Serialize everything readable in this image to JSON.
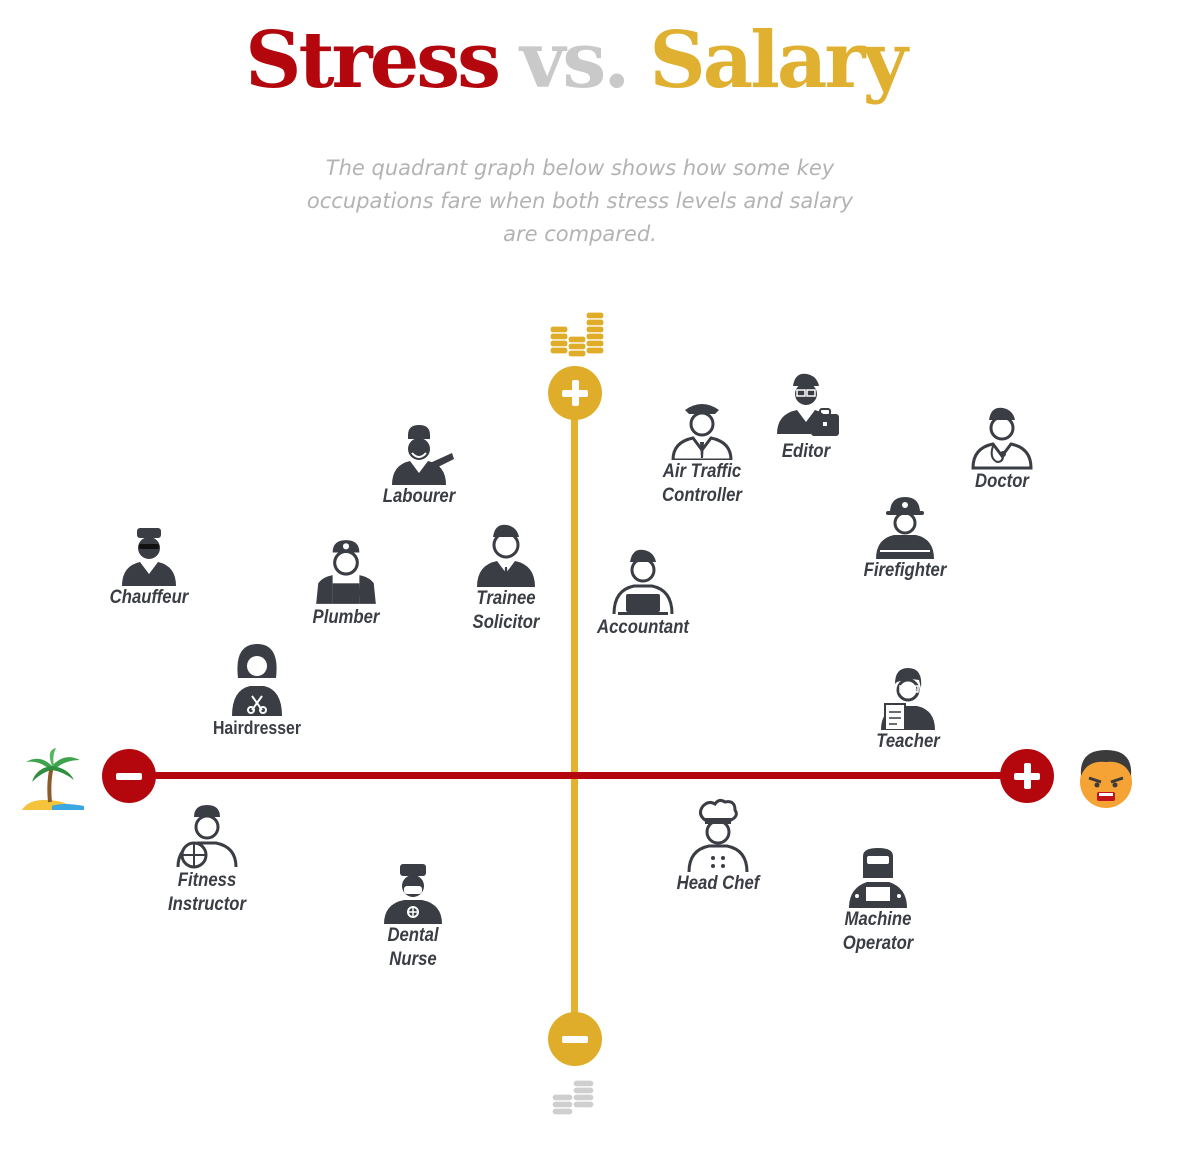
{
  "header": {
    "title_word1": "Stress",
    "title_word2": "vs.",
    "title_word3": "Salary",
    "subtitle": "The quadrant graph below shows how some key occupations fare when both stress levels and salary are compared."
  },
  "colors": {
    "stress_axis": "#b3070d",
    "salary_axis": "#e0ad2a",
    "muted": "#c9c9c9",
    "text": "#3a3d44"
  },
  "axes": {
    "x": {
      "meaning": "stress",
      "low_icon": "palm-tree-island-icon",
      "high_icon": "angry-face-icon",
      "low_sign": "minus",
      "high_sign": "plus"
    },
    "y": {
      "meaning": "salary",
      "low_icon": "small-coin-stack-icon",
      "high_icon": "tall-coin-stacks-icon",
      "low_sign": "minus",
      "high_sign": "plus"
    }
  },
  "occupations": [
    {
      "key": "labourer",
      "lines": [
        "Labourer"
      ],
      "icon": "labourer-icon",
      "quadrant": "low-stress-high-salary"
    },
    {
      "key": "chauffeur",
      "lines": [
        "Chauffeur"
      ],
      "icon": "chauffeur-icon",
      "quadrant": "low-stress-high-salary"
    },
    {
      "key": "plumber",
      "lines": [
        "Plumber"
      ],
      "icon": "plumber-icon",
      "quadrant": "low-stress-high-salary"
    },
    {
      "key": "trainee_solicitor",
      "lines": [
        "Trainee",
        "Solicitor"
      ],
      "icon": "trainee-solicitor-icon",
      "quadrant": "low-stress-high-salary"
    },
    {
      "key": "hairdresser",
      "lines": [
        "Hairdresser"
      ],
      "icon": "hairdresser-icon",
      "quadrant": "low-stress-high-salary"
    },
    {
      "key": "air_traffic_controller",
      "lines": [
        "Air Traffic",
        "Controller"
      ],
      "icon": "pilot-icon",
      "quadrant": "high-stress-high-salary"
    },
    {
      "key": "editor",
      "lines": [
        "Editor"
      ],
      "icon": "editor-icon",
      "quadrant": "high-stress-high-salary"
    },
    {
      "key": "doctor",
      "lines": [
        "Doctor"
      ],
      "icon": "doctor-icon",
      "quadrant": "high-stress-high-salary"
    },
    {
      "key": "firefighter",
      "lines": [
        "Firefighter"
      ],
      "icon": "firefighter-icon",
      "quadrant": "high-stress-high-salary"
    },
    {
      "key": "accountant",
      "lines": [
        "Accountant"
      ],
      "icon": "accountant-icon",
      "quadrant": "high-stress-high-salary"
    },
    {
      "key": "teacher",
      "lines": [
        "Teacher"
      ],
      "icon": "teacher-icon",
      "quadrant": "high-stress-high-salary"
    },
    {
      "key": "fitness_instructor",
      "lines": [
        "Fitness",
        "Instructor"
      ],
      "icon": "fitness-instructor-icon",
      "quadrant": "low-stress-low-salary"
    },
    {
      "key": "dental_nurse",
      "lines": [
        "Dental",
        "Nurse"
      ],
      "icon": "dental-nurse-icon",
      "quadrant": "low-stress-low-salary"
    },
    {
      "key": "head_chef",
      "lines": [
        "Head Chef"
      ],
      "icon": "chef-icon",
      "quadrant": "high-stress-low-salary"
    },
    {
      "key": "machine_operator",
      "lines": [
        "Machine",
        "Operator"
      ],
      "icon": "welder-icon",
      "quadrant": "high-stress-low-salary"
    }
  ]
}
